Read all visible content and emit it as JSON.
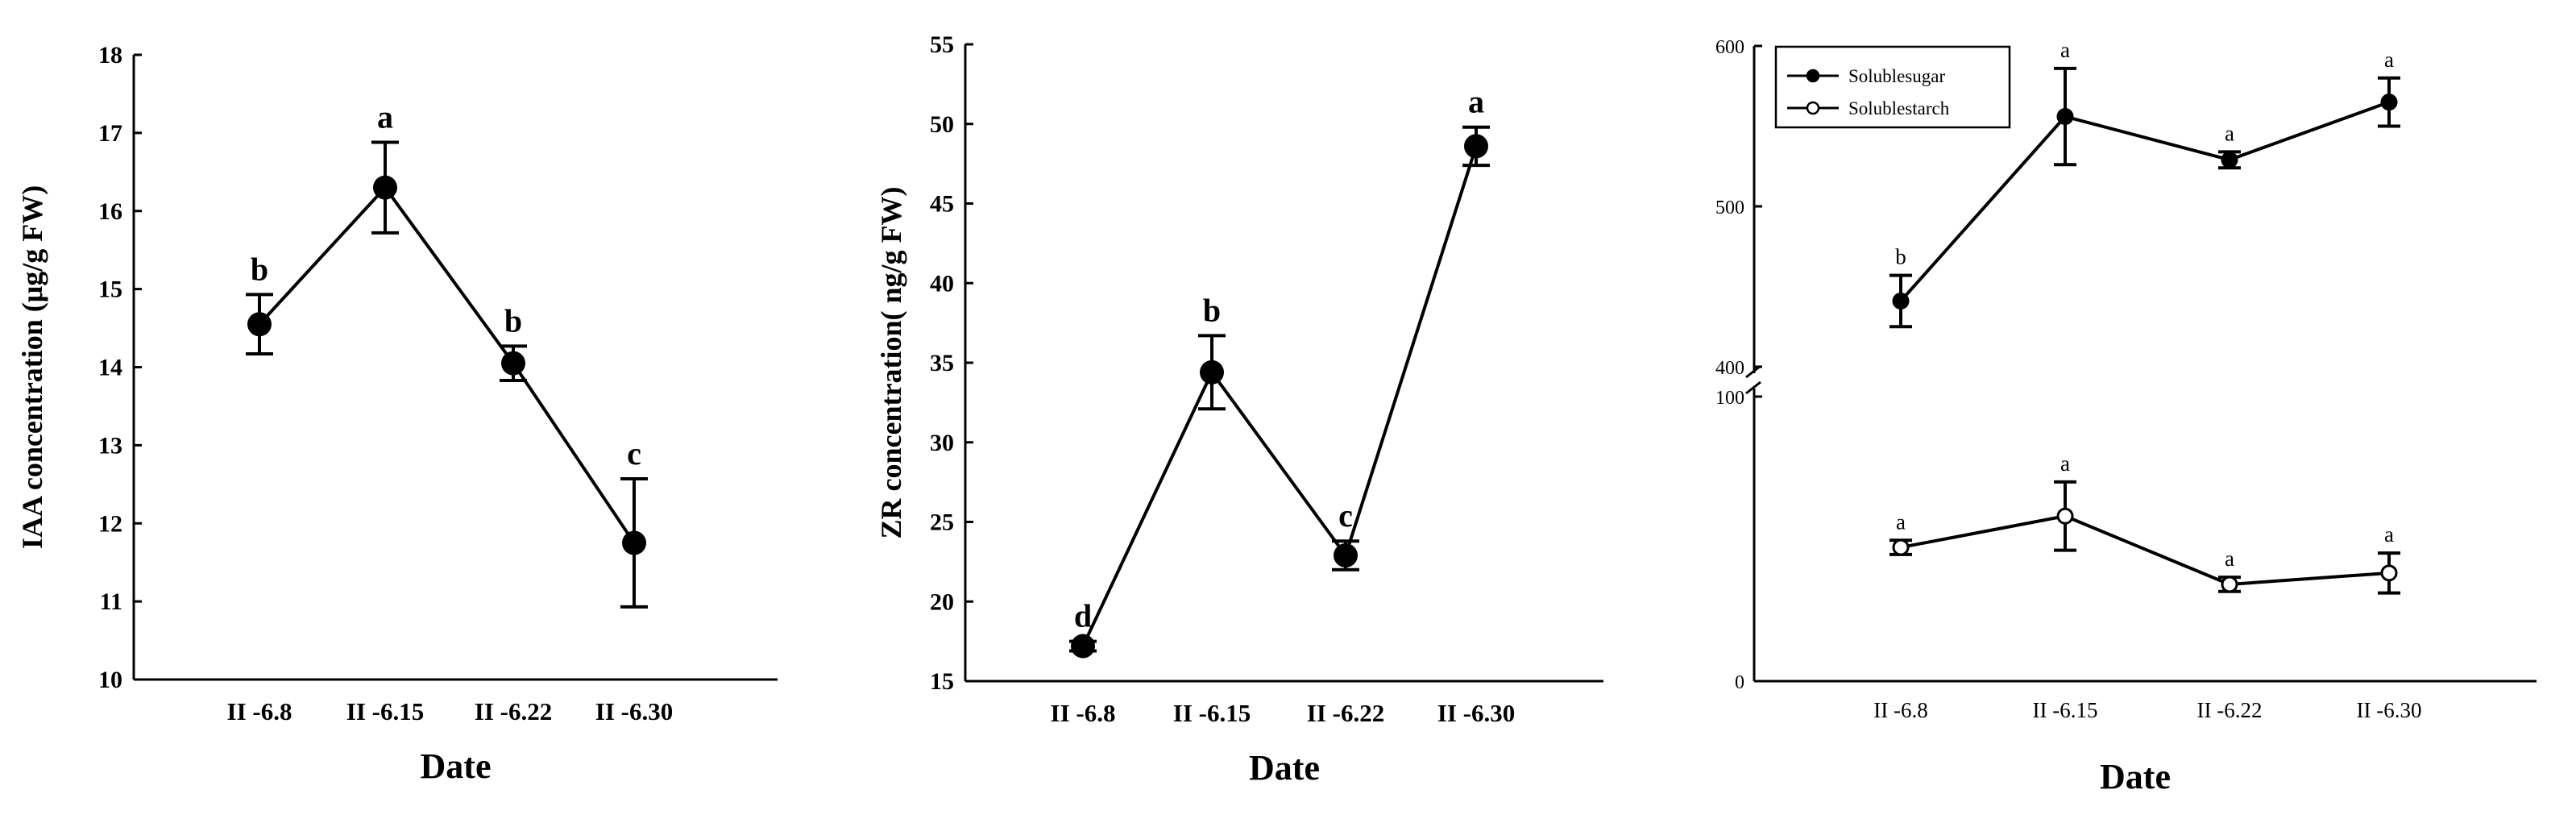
{
  "chart_data": [
    {
      "type": "line",
      "categories": [
        "II -6.8",
        "II -6.15",
        "II -6.22",
        "II -6.30"
      ],
      "xlabel": "Date",
      "ylabel": "IAA concentration (μg/g FW)",
      "ylim": [
        10,
        18
      ],
      "yticks": [
        "10",
        "11",
        "12",
        "13",
        "14",
        "15",
        "16",
        "17",
        "18"
      ],
      "grid": false,
      "series": [
        {
          "values": [
            14.55,
            16.3,
            14.05,
            11.75
          ],
          "errors": [
            0.38,
            0.58,
            0.22,
            0.82
          ],
          "labels": [
            "b",
            "a",
            "b",
            "c"
          ]
        }
      ]
    },
    {
      "type": "line",
      "categories": [
        "II -6.8",
        "II -6.15",
        "II -6.22",
        "II -6.30"
      ],
      "xlabel": "Date",
      "ylabel": "ZR concentration( ng/g FW)",
      "ylim": [
        15,
        55
      ],
      "yticks": [
        "15",
        "20",
        "25",
        "30",
        "35",
        "40",
        "45",
        "50",
        "55"
      ],
      "grid": false,
      "series": [
        {
          "values": [
            17.2,
            34.4,
            22.9,
            48.6
          ],
          "errors": [
            0.3,
            2.3,
            0.9,
            1.2
          ],
          "labels": [
            "d",
            "b",
            "c",
            "a"
          ]
        }
      ]
    },
    {
      "type": "line",
      "categories": [
        "II -6.8",
        "II -6.15",
        "II -6.22",
        "II -6.30"
      ],
      "xlabel": "Date",
      "ylabel": "",
      "ylim_upper": [
        400,
        600
      ],
      "ylim_lower": [
        0,
        100
      ],
      "yticks_upper": [
        "400",
        "500",
        "600"
      ],
      "yticks_lower": [
        "0",
        "100"
      ],
      "axis_break": true,
      "grid": false,
      "legend_position": "top-left",
      "series": [
        {
          "name": "Solublesugar",
          "marker": "filled",
          "values": [
            441,
            556,
            529,
            565
          ],
          "errors": [
            16,
            30,
            5,
            15
          ],
          "labels": [
            "b",
            "a",
            "a",
            "a"
          ]
        },
        {
          "name": "Solublestarch",
          "marker": "open",
          "values": [
            47,
            58,
            34,
            38
          ],
          "errors": [
            2.5,
            12,
            2.5,
            7
          ],
          "labels": [
            "a",
            "a",
            "a",
            "a"
          ]
        }
      ]
    }
  ]
}
